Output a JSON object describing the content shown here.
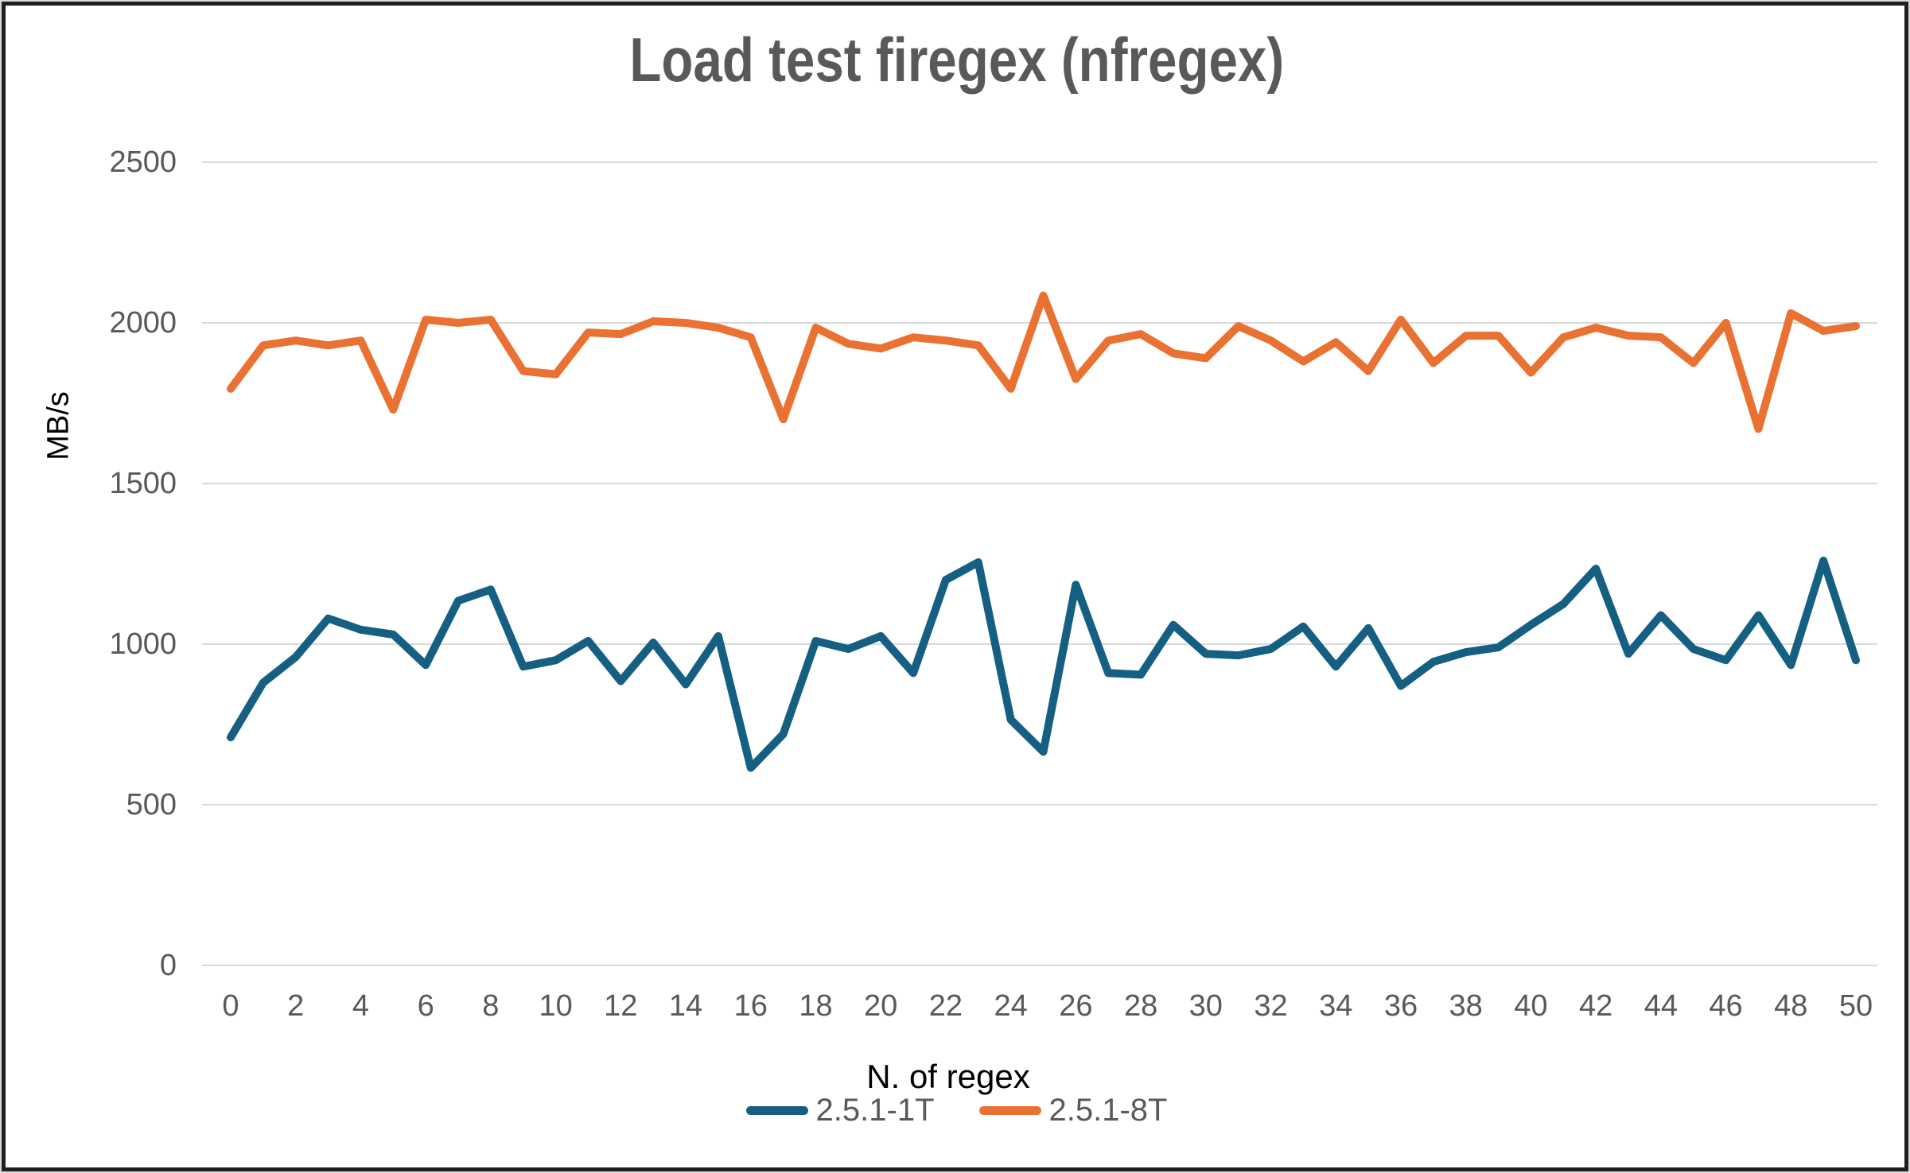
{
  "chart_data": {
    "type": "line",
    "title": "Load test firegex (nfregex)",
    "xlabel": "N. of regex",
    "ylabel": "MB/s",
    "x": [
      0,
      1,
      2,
      3,
      4,
      5,
      6,
      7,
      8,
      9,
      10,
      11,
      12,
      13,
      14,
      15,
      16,
      17,
      18,
      19,
      20,
      21,
      22,
      23,
      24,
      25,
      26,
      27,
      28,
      29,
      30,
      31,
      32,
      33,
      34,
      35,
      36,
      37,
      38,
      39,
      40,
      41,
      42,
      43,
      44,
      45,
      46,
      47,
      48,
      49,
      50
    ],
    "xticks": [
      0,
      2,
      4,
      6,
      8,
      10,
      12,
      14,
      16,
      18,
      20,
      22,
      24,
      26,
      28,
      30,
      32,
      34,
      36,
      38,
      40,
      42,
      44,
      46,
      48,
      50
    ],
    "yticks": [
      0,
      500,
      1000,
      1500,
      2000,
      2500
    ],
    "ylim": [
      0,
      2500
    ],
    "grid": "horizontal",
    "legend_position": "bottom",
    "series": [
      {
        "name": "2.5.1-1T",
        "color": "#156082",
        "values": [
          710,
          880,
          960,
          1080,
          1045,
          1030,
          935,
          1135,
          1170,
          930,
          950,
          1010,
          885,
          1005,
          875,
          1025,
          615,
          720,
          1010,
          985,
          1025,
          910,
          1200,
          1255,
          765,
          665,
          1185,
          910,
          905,
          1060,
          970,
          965,
          985,
          1055,
          930,
          1050,
          870,
          945,
          975,
          990,
          1060,
          1125,
          1235,
          970,
          1090,
          985,
          950,
          1090,
          935,
          1260,
          950
        ]
      },
      {
        "name": "2.5.1-8T",
        "color": "#E97132",
        "values": [
          1795,
          1930,
          1945,
          1930,
          1945,
          1730,
          2010,
          2000,
          2010,
          1850,
          1840,
          1970,
          1965,
          2005,
          2000,
          1985,
          1955,
          1700,
          1985,
          1935,
          1920,
          1955,
          1945,
          1930,
          1795,
          2085,
          1825,
          1945,
          1965,
          1905,
          1890,
          1990,
          1945,
          1880,
          1940,
          1850,
          2010,
          1875,
          1960,
          1960,
          1845,
          1955,
          1985,
          1960,
          1955,
          1875,
          2000,
          1670,
          2030,
          1975,
          1990
        ]
      }
    ],
    "colors": {
      "grid": "#D9D9D9",
      "tick_text": "#595959",
      "title_text": "#595959",
      "axis_label_text": "#000000"
    }
  }
}
